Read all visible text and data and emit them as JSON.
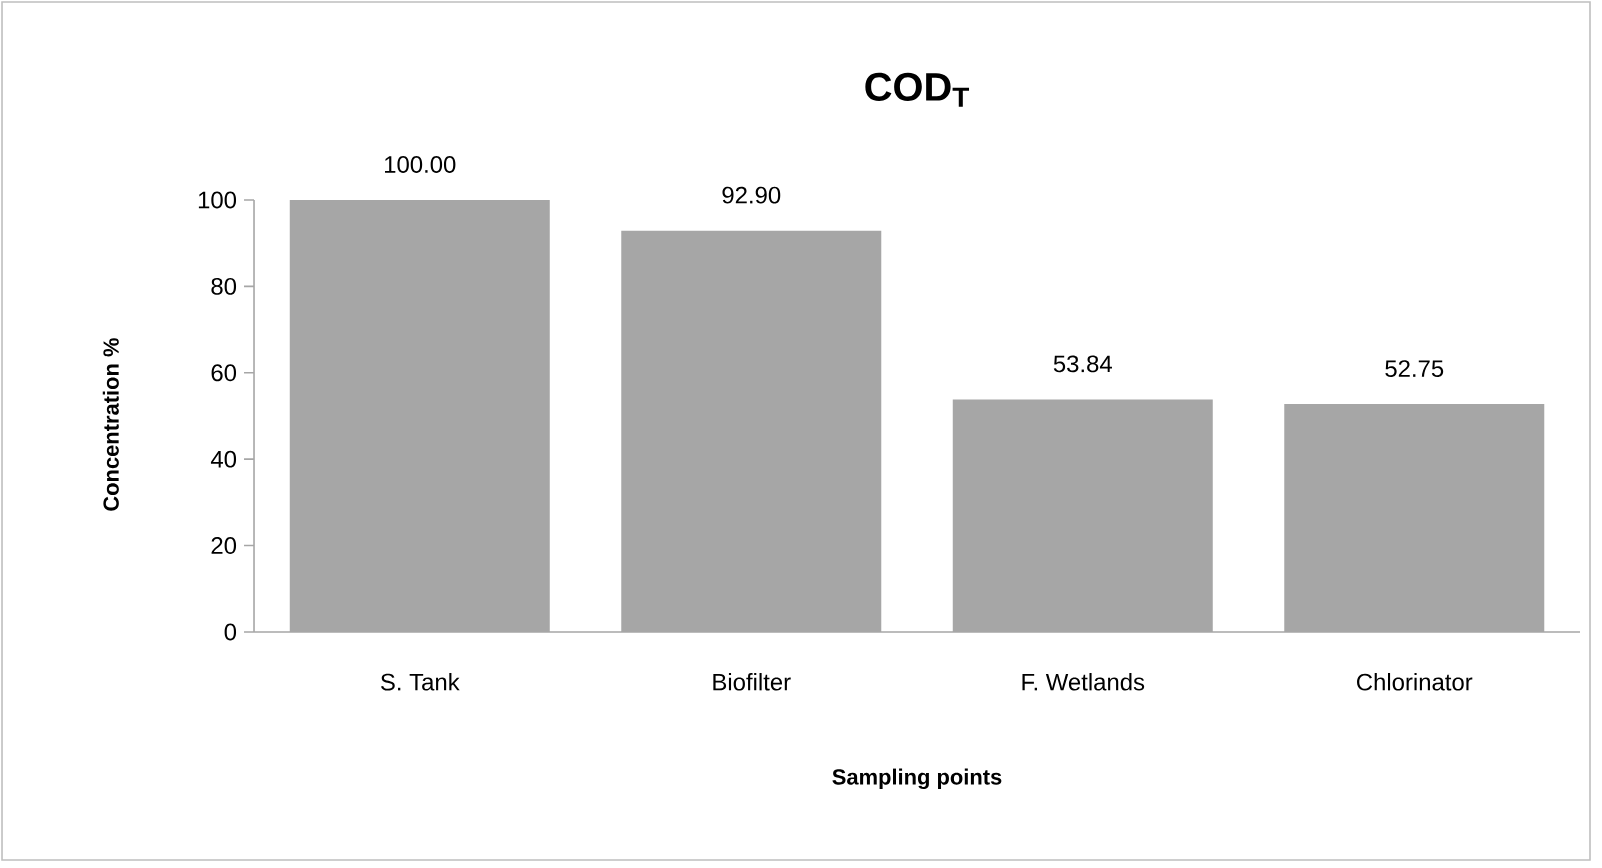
{
  "chart_data": {
    "type": "bar",
    "title": "COD$_{T}$",
    "xlabel": "Sampling points",
    "ylabel": "Concentration %",
    "categories": [
      "S. Tank",
      "Biofilter",
      "F. Wetlands",
      "Chlorinator"
    ],
    "values": [
      100.0,
      92.9,
      53.84,
      52.75
    ],
    "value_labels": [
      "100.00",
      "92.90",
      "53.84",
      "52.75"
    ],
    "color": "#a6a6a6",
    "ylim": [
      0,
      100
    ],
    "yticks": [
      0,
      20,
      40,
      60,
      80,
      100
    ],
    "grid": false
  }
}
